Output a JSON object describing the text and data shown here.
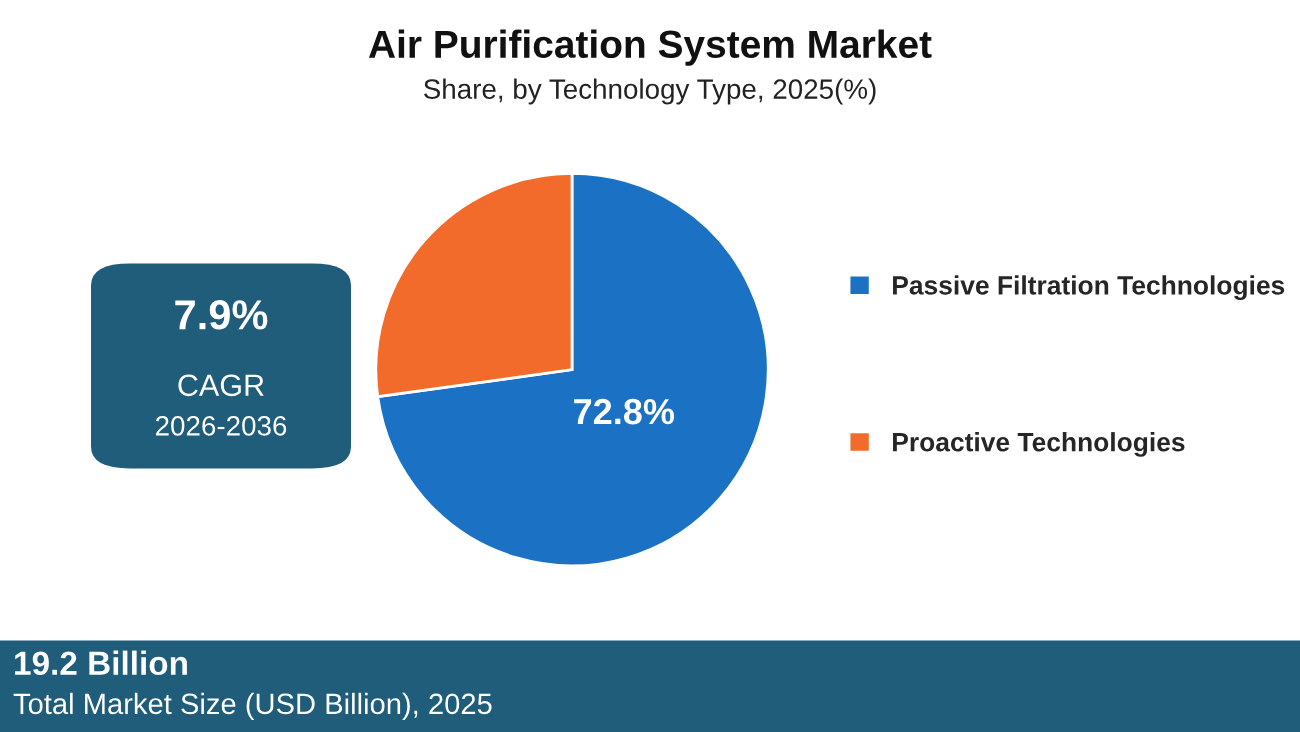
{
  "chart_data": {
    "type": "pie",
    "title": "Air Purification System Market",
    "subtitle": "Share, by Technology Type, 2025(%)",
    "categories": [
      "Passive Filtration Technologies",
      "Proactive Technologies"
    ],
    "values": [
      72.8,
      27.2
    ],
    "colors": [
      "#1b72c4",
      "#f26b2a"
    ],
    "value_labels": [
      "72.8%",
      null
    ],
    "legend": "right",
    "annotations": [
      "7.9%",
      "CAGR",
      "2026-2036",
      "19.2 Billion",
      "Total Market Size (USD Billion), 2025"
    ]
  }
}
